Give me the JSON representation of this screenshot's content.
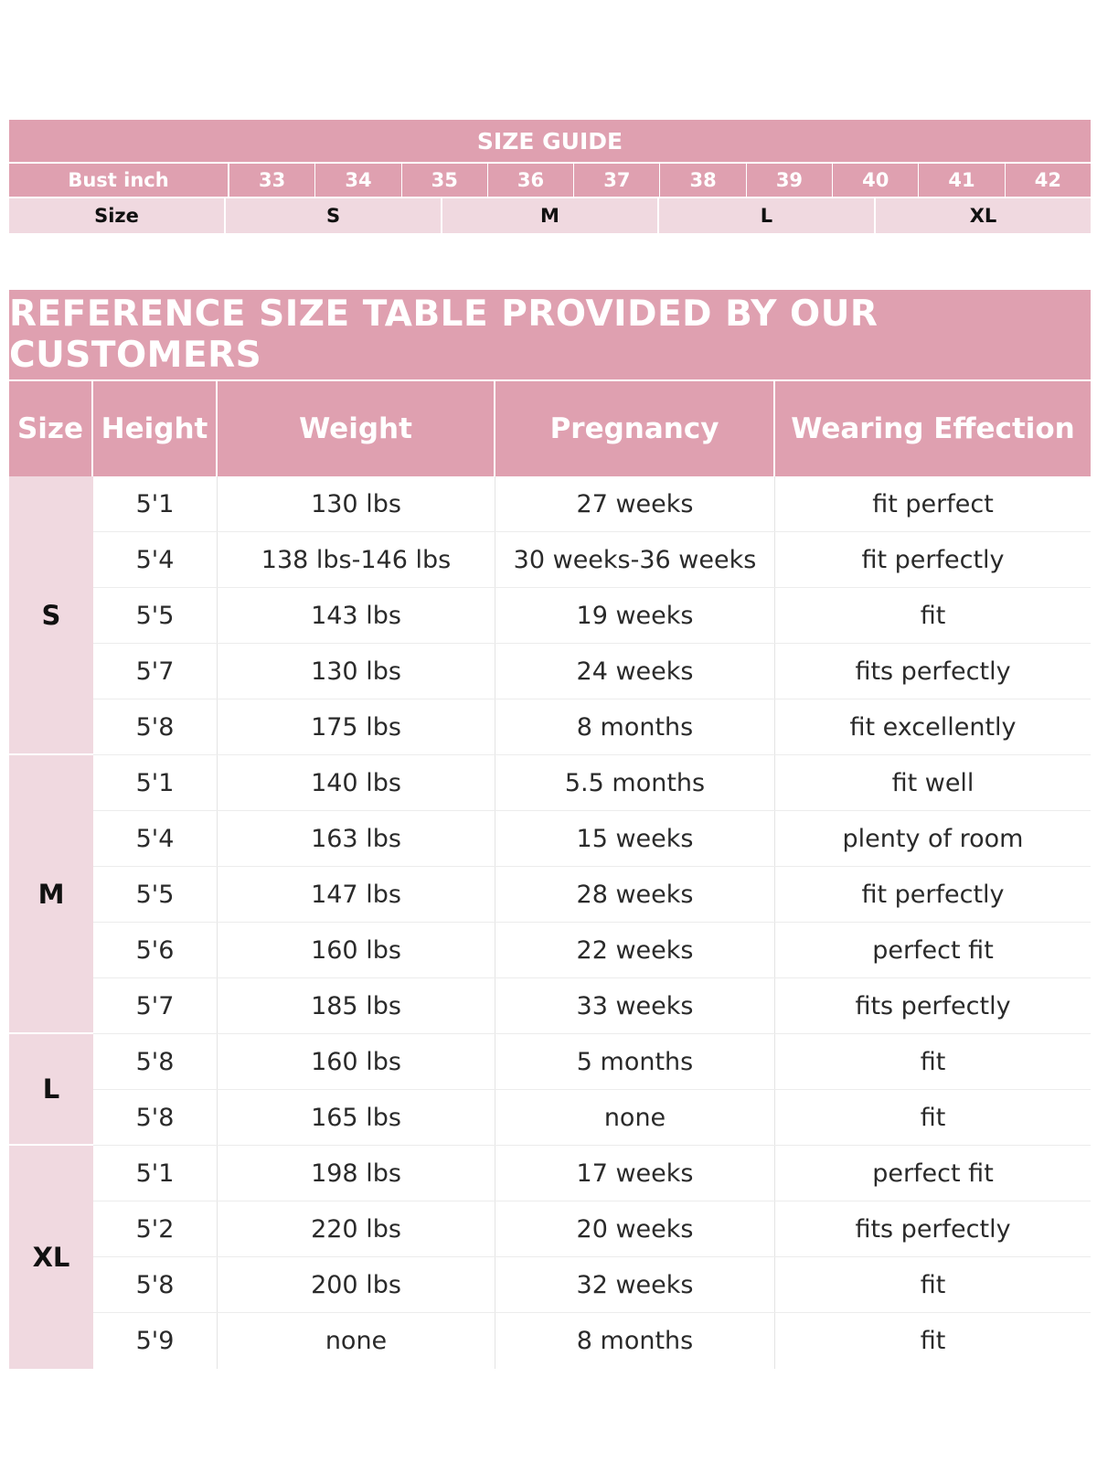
{
  "size_guide": {
    "title": "SIZE GUIDE",
    "bust_label": "Bust inch",
    "bust_values": [
      "33",
      "34",
      "35",
      "36",
      "37",
      "38",
      "39",
      "40",
      "41",
      "42"
    ],
    "size_label": "Size",
    "sizes": [
      "S",
      "M",
      "L",
      "XL"
    ]
  },
  "reference": {
    "title": "REFERENCE SIZE TABLE PROVIDED BY OUR CUSTOMERS",
    "headers": {
      "size": "Size",
      "height": "Height",
      "weight": "Weight",
      "pregnancy": "Pregnancy",
      "effect": "Wearing Effection"
    },
    "groups": [
      {
        "size": "S",
        "rows": [
          {
            "height": "5'1",
            "weight": "130 lbs",
            "pregnancy": "27 weeks",
            "effect": "fit perfect"
          },
          {
            "height": "5'4",
            "weight": "138 lbs-146 lbs",
            "pregnancy": "30 weeks-36 weeks",
            "effect": "fit perfectly"
          },
          {
            "height": "5'5",
            "weight": "143 lbs",
            "pregnancy": "19 weeks",
            "effect": "fit"
          },
          {
            "height": "5'7",
            "weight": "130 lbs",
            "pregnancy": "24 weeks",
            "effect": "fits perfectly"
          },
          {
            "height": "5'8",
            "weight": "175 lbs",
            "pregnancy": "8 months",
            "effect": "fit excellently"
          }
        ]
      },
      {
        "size": "M",
        "rows": [
          {
            "height": "5'1",
            "weight": "140 lbs",
            "pregnancy": "5.5 months",
            "effect": "fit well"
          },
          {
            "height": "5'4",
            "weight": "163 lbs",
            "pregnancy": "15 weeks",
            "effect": "plenty of room"
          },
          {
            "height": "5'5",
            "weight": "147 lbs",
            "pregnancy": "28 weeks",
            "effect": "fit perfectly"
          },
          {
            "height": "5'6",
            "weight": "160 lbs",
            "pregnancy": "22 weeks",
            "effect": "perfect fit"
          },
          {
            "height": "5'7",
            "weight": "185 lbs",
            "pregnancy": "33 weeks",
            "effect": "fits perfectly"
          }
        ]
      },
      {
        "size": "L",
        "rows": [
          {
            "height": "5'8",
            "weight": "160 lbs",
            "pregnancy": "5 months",
            "effect": "fit"
          },
          {
            "height": "5'8",
            "weight": "165 lbs",
            "pregnancy": "none",
            "effect": "fit"
          }
        ]
      },
      {
        "size": "XL",
        "rows": [
          {
            "height": "5'1",
            "weight": "198 lbs",
            "pregnancy": "17 weeks",
            "effect": "perfect fit"
          },
          {
            "height": "5'2",
            "weight": "220 lbs",
            "pregnancy": "20 weeks",
            "effect": "fits perfectly"
          },
          {
            "height": "5'8",
            "weight": "200 lbs",
            "pregnancy": "32 weeks",
            "effect": "fit"
          },
          {
            "height": "5'9",
            "weight": "none",
            "pregnancy": "8 months",
            "effect": "fit"
          }
        ]
      }
    ]
  }
}
